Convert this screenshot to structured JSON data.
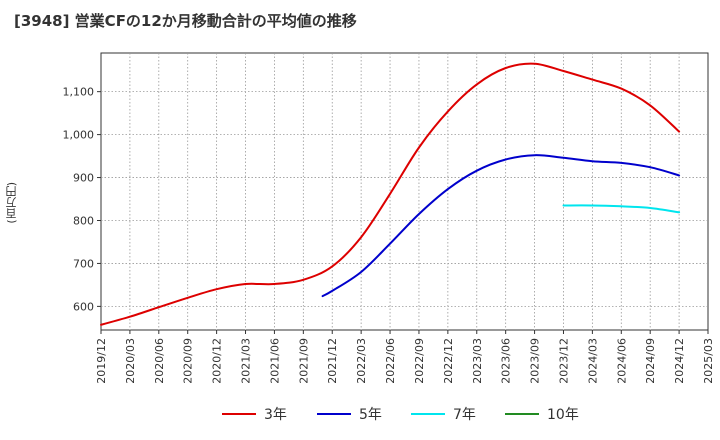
{
  "title": "[3948]  営業CFの12か月移動合計の平均値の推移",
  "ylabel": "(百万円)",
  "colors": {
    "grid": "#999999",
    "axis": "#333333"
  },
  "chart_data": {
    "type": "line",
    "x_ticks": [
      "2019/12",
      "2020/03",
      "2020/06",
      "2020/09",
      "2020/12",
      "2021/03",
      "2021/06",
      "2021/09",
      "2021/12",
      "2022/03",
      "2022/06",
      "2022/09",
      "2022/12",
      "2023/03",
      "2023/06",
      "2023/09",
      "2023/12",
      "2024/03",
      "2024/06",
      "2024/09",
      "2024/12",
      "2025/03"
    ],
    "y_ticks": [
      600,
      700,
      800,
      900,
      1000,
      1100
    ],
    "y_tick_labels": [
      "600",
      "700",
      "800",
      "900",
      "1,000",
      "1,100"
    ],
    "ylim": [
      545,
      1190
    ],
    "grid": true,
    "legend_position": "bottom",
    "series": [
      {
        "name": "3年",
        "color": "#dd0000",
        "points": [
          [
            "2019/12",
            557
          ],
          [
            "2020/03",
            576
          ],
          [
            "2020/06",
            598
          ],
          [
            "2020/09",
            620
          ],
          [
            "2020/12",
            640
          ],
          [
            "2021/03",
            652
          ],
          [
            "2021/06",
            652
          ],
          [
            "2021/09",
            662
          ],
          [
            "2021/12",
            693
          ],
          [
            "2022/03",
            761
          ],
          [
            "2022/06",
            862
          ],
          [
            "2022/09",
            970
          ],
          [
            "2022/12",
            1054
          ],
          [
            "2023/03",
            1117
          ],
          [
            "2023/06",
            1155
          ],
          [
            "2023/09",
            1165
          ],
          [
            "2023/12",
            1148
          ],
          [
            "2024/03",
            1128
          ],
          [
            "2024/06",
            1107
          ],
          [
            "2024/09",
            1068
          ],
          [
            "2024/12",
            1007
          ]
        ]
      },
      {
        "name": "5年",
        "color": "#0000cc",
        "points": [
          [
            "2021/11",
            624
          ],
          [
            "2021/12",
            636
          ],
          [
            "2022/03",
            680
          ],
          [
            "2022/06",
            746
          ],
          [
            "2022/09",
            815
          ],
          [
            "2022/12",
            873
          ],
          [
            "2023/03",
            916
          ],
          [
            "2023/06",
            942
          ],
          [
            "2023/09",
            952
          ],
          [
            "2023/12",
            946
          ],
          [
            "2024/03",
            938
          ],
          [
            "2024/06",
            934
          ],
          [
            "2024/09",
            924
          ],
          [
            "2024/12",
            905
          ]
        ]
      },
      {
        "name": "7年",
        "color": "#00e5ee",
        "points": [
          [
            "2023/12",
            835
          ],
          [
            "2024/03",
            835
          ],
          [
            "2024/06",
            833
          ],
          [
            "2024/09",
            829
          ],
          [
            "2024/12",
            819
          ]
        ]
      },
      {
        "name": "10年",
        "color": "#228b22",
        "points": []
      }
    ]
  }
}
